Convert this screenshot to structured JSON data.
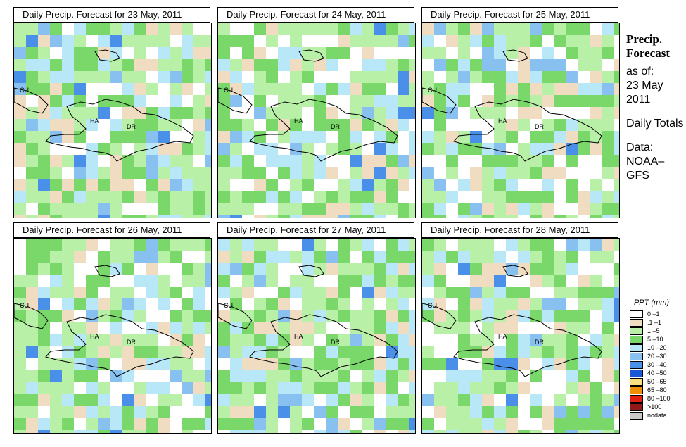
{
  "panels": [
    {
      "title": "Daily Precip. Forecast for  23 May, 2011",
      "seed": 1
    },
    {
      "title": "Daily Precip. Forecast for  24 May, 2011",
      "seed": 2
    },
    {
      "title": "Daily Precip. Forecast for  25 May, 2011",
      "seed": 3
    },
    {
      "title": "Daily Precip. Forecast for  26 May, 2011",
      "seed": 4
    },
    {
      "title": "Daily Precip. Forecast for  27 May, 2011",
      "seed": 5
    },
    {
      "title": "Daily Precip. Forecast for  28 May, 2011",
      "seed": 6
    }
  ],
  "map_labels": {
    "cuba": "CU",
    "haiti": "HA",
    "dominican_republic": "DR"
  },
  "side": {
    "title": "Precip. Forecast",
    "as_of_label": "as of:",
    "as_of_date": "23 May 2011",
    "totals": "Daily Totals",
    "data_label": "Data:",
    "data_source": "NOAA–GFS"
  },
  "legend": {
    "title": "PPT (mm)",
    "items": [
      {
        "label": "0 –1",
        "color": "#ffffff"
      },
      {
        "label": ".1 –1",
        "color": "#f0dcc0"
      },
      {
        "label": "1 –5",
        "color": "#b8f0a8"
      },
      {
        "label": "5 –10",
        "color": "#7ad86a"
      },
      {
        "label": "10 –20",
        "color": "#b8e8f8"
      },
      {
        "label": "20 –30",
        "color": "#88c0f0"
      },
      {
        "label": "30 –40",
        "color": "#4a90e8"
      },
      {
        "label": "40 –50",
        "color": "#1858d8"
      },
      {
        "label": "50 –65",
        "color": "#f8e080"
      },
      {
        "label": "65 –80",
        "color": "#f09000"
      },
      {
        "label": "80 –100",
        "color": "#e02010"
      },
      {
        "label": ">100",
        "color": "#901818"
      },
      {
        "label": "nodata",
        "color": "#c8c8c8"
      }
    ]
  }
}
